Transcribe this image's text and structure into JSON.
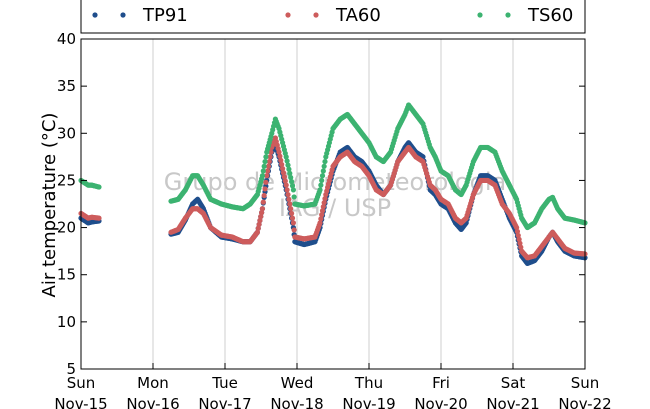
{
  "chart_data": {
    "type": "scatter",
    "ylabel": "Air temperature (°C)",
    "ylim": [
      5,
      40
    ],
    "y_ticks": [
      "5",
      "10",
      "15",
      "20",
      "25",
      "30",
      "35",
      "40"
    ],
    "x_ticks": [
      {
        "day": "Sun",
        "date": "Nov-15"
      },
      {
        "day": "Mon",
        "date": "Nov-16"
      },
      {
        "day": "Tue",
        "date": "Nov-17"
      },
      {
        "day": "Wed",
        "date": "Nov-18"
      },
      {
        "day": "Thu",
        "date": "Nov-19"
      },
      {
        "day": "Fri",
        "date": "Nov-20"
      },
      {
        "day": "Sat",
        "date": "Nov-21"
      },
      {
        "day": "Sun",
        "date": "Nov-22"
      }
    ],
    "xlim_days": [
      0,
      7
    ],
    "grid": "vertical",
    "legend_placement": "top",
    "watermark": [
      "Grupo de Micrometeorologia",
      "IAG / USP"
    ],
    "series": [
      {
        "name": "TP91",
        "color": "#1f4e8c",
        "points": [
          [
            0.0,
            21.0
          ],
          [
            0.1,
            20.5
          ],
          [
            0.15,
            20.6
          ],
          [
            0.25,
            20.7
          ],
          [
            1.25,
            19.3
          ],
          [
            1.35,
            19.5
          ],
          [
            1.45,
            20.8
          ],
          [
            1.55,
            22.5
          ],
          [
            1.62,
            23.0
          ],
          [
            1.7,
            22.0
          ],
          [
            1.8,
            20.0
          ],
          [
            1.95,
            19.0
          ],
          [
            2.1,
            18.8
          ],
          [
            2.25,
            18.5
          ],
          [
            2.35,
            18.5
          ],
          [
            2.45,
            19.5
          ],
          [
            2.52,
            22.0
          ],
          [
            2.58,
            25.0
          ],
          [
            2.65,
            28.0
          ],
          [
            2.7,
            28.8
          ],
          [
            2.75,
            27.5
          ],
          [
            2.85,
            24.0
          ],
          [
            2.95,
            20.0
          ],
          [
            2.97,
            18.5
          ],
          [
            3.1,
            18.2
          ],
          [
            3.25,
            18.5
          ],
          [
            3.32,
            20.0
          ],
          [
            3.4,
            23.0
          ],
          [
            3.5,
            26.0
          ],
          [
            3.6,
            28.0
          ],
          [
            3.7,
            28.5
          ],
          [
            3.8,
            27.5
          ],
          [
            3.9,
            27.0
          ],
          [
            4.0,
            26.0
          ],
          [
            4.1,
            24.5
          ],
          [
            4.2,
            23.5
          ],
          [
            4.3,
            24.5
          ],
          [
            4.4,
            27.0
          ],
          [
            4.5,
            28.5
          ],
          [
            4.55,
            29.0
          ],
          [
            4.65,
            28.0
          ],
          [
            4.75,
            27.5
          ],
          [
            4.85,
            24.0
          ],
          [
            4.92,
            23.5
          ],
          [
            5.0,
            22.5
          ],
          [
            5.1,
            22.0
          ],
          [
            5.2,
            20.5
          ],
          [
            5.28,
            19.8
          ],
          [
            5.35,
            20.5
          ],
          [
            5.45,
            23.5
          ],
          [
            5.55,
            25.5
          ],
          [
            5.65,
            25.5
          ],
          [
            5.75,
            25.0
          ],
          [
            5.85,
            23.0
          ],
          [
            5.95,
            21.0
          ],
          [
            6.05,
            19.5
          ],
          [
            6.12,
            17.0
          ],
          [
            6.2,
            16.2
          ],
          [
            6.3,
            16.5
          ],
          [
            6.4,
            17.5
          ],
          [
            6.5,
            19.0
          ],
          [
            6.55,
            19.5
          ],
          [
            6.62,
            18.5
          ],
          [
            6.72,
            17.5
          ],
          [
            6.85,
            17.0
          ],
          [
            7.0,
            16.8
          ]
        ]
      },
      {
        "name": "TA60",
        "color": "#cd5c5c",
        "points": [
          [
            0.0,
            21.5
          ],
          [
            0.1,
            21.0
          ],
          [
            0.15,
            21.1
          ],
          [
            0.25,
            21.0
          ],
          [
            1.25,
            19.5
          ],
          [
            1.35,
            19.8
          ],
          [
            1.45,
            21.0
          ],
          [
            1.55,
            22.0
          ],
          [
            1.62,
            22.0
          ],
          [
            1.7,
            21.5
          ],
          [
            1.8,
            20.0
          ],
          [
            1.95,
            19.2
          ],
          [
            2.1,
            19.0
          ],
          [
            2.25,
            18.5
          ],
          [
            2.35,
            18.5
          ],
          [
            2.45,
            19.5
          ],
          [
            2.52,
            22.0
          ],
          [
            2.58,
            25.5
          ],
          [
            2.65,
            28.5
          ],
          [
            2.7,
            29.5
          ],
          [
            2.75,
            28.0
          ],
          [
            2.85,
            24.5
          ],
          [
            2.95,
            20.5
          ],
          [
            2.97,
            19.0
          ],
          [
            3.1,
            18.8
          ],
          [
            3.25,
            19.0
          ],
          [
            3.32,
            20.5
          ],
          [
            3.4,
            23.5
          ],
          [
            3.5,
            26.5
          ],
          [
            3.6,
            27.5
          ],
          [
            3.7,
            28.0
          ],
          [
            3.8,
            27.0
          ],
          [
            3.9,
            26.5
          ],
          [
            4.0,
            25.5
          ],
          [
            4.1,
            24.0
          ],
          [
            4.2,
            23.5
          ],
          [
            4.3,
            24.5
          ],
          [
            4.4,
            27.0
          ],
          [
            4.5,
            28.0
          ],
          [
            4.55,
            28.5
          ],
          [
            4.65,
            27.5
          ],
          [
            4.75,
            27.0
          ],
          [
            4.85,
            24.5
          ],
          [
            4.92,
            24.0
          ],
          [
            5.0,
            23.0
          ],
          [
            5.1,
            22.5
          ],
          [
            5.2,
            21.0
          ],
          [
            5.28,
            20.5
          ],
          [
            5.35,
            21.0
          ],
          [
            5.45,
            23.5
          ],
          [
            5.55,
            25.0
          ],
          [
            5.65,
            25.0
          ],
          [
            5.75,
            24.5
          ],
          [
            5.85,
            22.5
          ],
          [
            5.95,
            21.5
          ],
          [
            6.05,
            20.0
          ],
          [
            6.12,
            17.5
          ],
          [
            6.2,
            16.8
          ],
          [
            6.3,
            17.0
          ],
          [
            6.4,
            18.0
          ],
          [
            6.5,
            19.0
          ],
          [
            6.55,
            19.5
          ],
          [
            6.62,
            18.8
          ],
          [
            6.72,
            17.8
          ],
          [
            6.85,
            17.3
          ],
          [
            7.0,
            17.2
          ]
        ]
      },
      {
        "name": "TS60",
        "color": "#3cb371",
        "points": [
          [
            0.0,
            25.0
          ],
          [
            0.1,
            24.5
          ],
          [
            0.15,
            24.5
          ],
          [
            0.25,
            24.3
          ],
          [
            1.25,
            22.8
          ],
          [
            1.35,
            23.0
          ],
          [
            1.45,
            24.0
          ],
          [
            1.55,
            25.5
          ],
          [
            1.62,
            25.5
          ],
          [
            1.7,
            24.5
          ],
          [
            1.8,
            23.0
          ],
          [
            1.95,
            22.5
          ],
          [
            2.1,
            22.2
          ],
          [
            2.25,
            22.0
          ],
          [
            2.35,
            22.5
          ],
          [
            2.45,
            23.5
          ],
          [
            2.52,
            25.5
          ],
          [
            2.58,
            28.0
          ],
          [
            2.65,
            30.0
          ],
          [
            2.7,
            31.5
          ],
          [
            2.75,
            30.5
          ],
          [
            2.85,
            27.5
          ],
          [
            2.95,
            24.0
          ],
          [
            2.97,
            22.5
          ],
          [
            3.1,
            22.3
          ],
          [
            3.25,
            22.5
          ],
          [
            3.32,
            24.0
          ],
          [
            3.4,
            27.5
          ],
          [
            3.5,
            30.5
          ],
          [
            3.6,
            31.5
          ],
          [
            3.7,
            32.0
          ],
          [
            3.8,
            31.0
          ],
          [
            3.9,
            30.0
          ],
          [
            4.0,
            29.0
          ],
          [
            4.1,
            27.5
          ],
          [
            4.2,
            27.0
          ],
          [
            4.3,
            28.0
          ],
          [
            4.4,
            30.5
          ],
          [
            4.5,
            32.0
          ],
          [
            4.55,
            33.0
          ],
          [
            4.65,
            32.0
          ],
          [
            4.75,
            31.0
          ],
          [
            4.85,
            28.5
          ],
          [
            4.92,
            27.5
          ],
          [
            5.0,
            26.0
          ],
          [
            5.1,
            25.5
          ],
          [
            5.2,
            24.0
          ],
          [
            5.28,
            23.5
          ],
          [
            5.35,
            24.5
          ],
          [
            5.45,
            27.0
          ],
          [
            5.55,
            28.5
          ],
          [
            5.65,
            28.5
          ],
          [
            5.75,
            28.0
          ],
          [
            5.85,
            26.0
          ],
          [
            5.95,
            24.5
          ],
          [
            6.05,
            23.0
          ],
          [
            6.12,
            21.0
          ],
          [
            6.2,
            20.0
          ],
          [
            6.3,
            20.5
          ],
          [
            6.4,
            22.0
          ],
          [
            6.5,
            23.0
          ],
          [
            6.55,
            23.2
          ],
          [
            6.62,
            22.0
          ],
          [
            6.72,
            21.0
          ],
          [
            6.85,
            20.8
          ],
          [
            7.0,
            20.5
          ]
        ]
      }
    ]
  }
}
